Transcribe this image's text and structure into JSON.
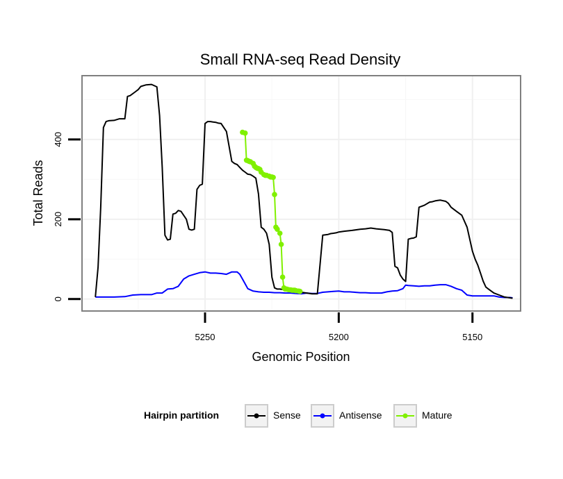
{
  "chart_data": {
    "type": "line",
    "title": "Small RNA-seq Read Density",
    "xlabel": "Genomic Position",
    "ylabel": "Total Reads",
    "xlim": [
      5296,
      5132
    ],
    "ylim": [
      -30,
      560
    ],
    "x_reversed": true,
    "x_ticks": [
      5250,
      5200,
      5150
    ],
    "x_tick_labels": [
      "5250",
      "5200",
      "5150"
    ],
    "y_ticks": [
      0,
      200,
      400
    ],
    "y_tick_labels": [
      "0",
      "200",
      "400"
    ],
    "grid": true,
    "legend": {
      "title": "Hairpin partition",
      "position": "bottom",
      "entries": [
        {
          "label": "Sense",
          "color": "#000000"
        },
        {
          "label": "Antisense",
          "color": "#0000ff"
        },
        {
          "label": "Mature",
          "color": "#80f000"
        }
      ]
    },
    "series": [
      {
        "name": "Sense",
        "color": "#000000",
        "x": [
          5291,
          5290,
          5289,
          5288,
          5287,
          5286,
          5284,
          5282,
          5280,
          5279,
          5278,
          5276,
          5275,
          5274,
          5272,
          5270,
          5268,
          5267,
          5266,
          5265,
          5264,
          5263,
          5262,
          5261,
          5260,
          5259,
          5258,
          5257,
          5256,
          5255,
          5254,
          5253,
          5252,
          5251,
          5250,
          5249,
          5248,
          5247,
          5246,
          5245,
          5244,
          5242,
          5240,
          5239,
          5238,
          5237,
          5236,
          5235,
          5234,
          5233,
          5232,
          5231,
          5230,
          5229,
          5228,
          5227,
          5226,
          5225,
          5224,
          5223,
          5222,
          5221,
          5220,
          5219,
          5218,
          5216,
          5214,
          5212,
          5210,
          5208,
          5206,
          5204,
          5203,
          5202,
          5201,
          5200,
          5198,
          5195,
          5192,
          5190,
          5188,
          5186,
          5183,
          5181,
          5180,
          5179,
          5178,
          5177,
          5176,
          5175,
          5174,
          5173,
          5172,
          5171,
          5170,
          5168,
          5166,
          5165,
          5164,
          5163,
          5162,
          5160,
          5159,
          5158,
          5156,
          5154,
          5152,
          5150,
          5149,
          5148,
          5147,
          5146,
          5145,
          5144,
          5142,
          5140,
          5138,
          5136,
          5135
        ],
        "y": [
          5,
          80,
          230,
          430,
          445,
          447,
          448,
          452,
          452,
          508,
          510,
          520,
          525,
          533,
          537,
          538,
          532,
          460,
          330,
          160,
          148,
          150,
          213,
          215,
          222,
          220,
          210,
          200,
          175,
          173,
          175,
          275,
          285,
          288,
          440,
          445,
          445,
          444,
          443,
          441,
          440,
          420,
          345,
          340,
          337,
          330,
          323,
          318,
          313,
          312,
          308,
          303,
          263,
          180,
          175,
          165,
          137,
          55,
          28,
          25,
          25,
          24,
          23,
          22,
          20,
          19,
          17,
          15,
          13,
          13,
          160,
          162,
          164,
          165,
          166,
          168,
          170,
          172,
          175,
          176,
          178,
          176,
          174,
          172,
          167,
          82,
          78,
          60,
          50,
          44,
          150,
          152,
          153,
          156,
          230,
          235,
          243,
          244,
          246,
          247,
          248,
          245,
          240,
          230,
          220,
          210,
          180,
          120,
          100,
          85,
          65,
          45,
          30,
          25,
          15,
          10,
          5,
          3,
          2
        ]
      },
      {
        "name": "Antisense",
        "color": "#0000ff",
        "x": [
          5291,
          5288,
          5284,
          5280,
          5277,
          5274,
          5270,
          5268,
          5266,
          5264,
          5262,
          5260,
          5258,
          5256,
          5254,
          5252,
          5250,
          5248,
          5246,
          5244,
          5242,
          5240,
          5238,
          5237,
          5236,
          5235,
          5234,
          5232,
          5230,
          5228,
          5226,
          5224,
          5222,
          5220,
          5218,
          5216,
          5214,
          5212,
          5210,
          5208,
          5206,
          5204,
          5202,
          5200,
          5198,
          5196,
          5194,
          5192,
          5190,
          5188,
          5186,
          5184,
          5182,
          5180,
          5178,
          5176,
          5175,
          5174,
          5172,
          5170,
          5168,
          5166,
          5164,
          5162,
          5160,
          5158,
          5156,
          5154,
          5152,
          5150,
          5148,
          5146,
          5144,
          5142,
          5140,
          5138,
          5136,
          5135
        ],
        "y": [
          5,
          5,
          5,
          6,
          10,
          11,
          11,
          15,
          15,
          25,
          26,
          32,
          50,
          58,
          62,
          66,
          68,
          65,
          65,
          64,
          62,
          68,
          68,
          62,
          50,
          38,
          26,
          20,
          18,
          17,
          17,
          16,
          16,
          15,
          15,
          14,
          13,
          15,
          14,
          14,
          17,
          18,
          19,
          20,
          18,
          18,
          17,
          16,
          16,
          15,
          15,
          15,
          18,
          20,
          21,
          26,
          35,
          34,
          33,
          32,
          33,
          33,
          35,
          36,
          36,
          32,
          26,
          22,
          10,
          8,
          8,
          8,
          8,
          8,
          5,
          4,
          4,
          3
        ]
      },
      {
        "name": "Mature",
        "color": "#80f000",
        "x": [
          5236,
          5235,
          5234.5,
          5234,
          5233.5,
          5233,
          5232,
          5231.5,
          5231,
          5230.5,
          5230,
          5229.5,
          5229,
          5228,
          5227.5,
          5227,
          5226,
          5225.5,
          5225,
          5224.5,
          5224,
          5223.5,
          5223,
          5222,
          5221.5,
          5221,
          5220.5,
          5220,
          5219.5,
          5219,
          5218.5,
          5218,
          5217.5,
          5217,
          5216.5,
          5216,
          5215,
          5214.5
        ],
        "y": [
          418,
          416,
          348,
          347,
          345,
          344,
          340,
          333,
          330,
          328,
          327,
          325,
          318,
          312,
          310,
          310,
          308,
          306,
          306,
          305,
          262,
          180,
          175,
          165,
          137,
          55,
          28,
          25,
          25,
          24,
          23,
          23,
          22,
          22,
          22,
          21,
          20,
          19
        ]
      }
    ]
  }
}
